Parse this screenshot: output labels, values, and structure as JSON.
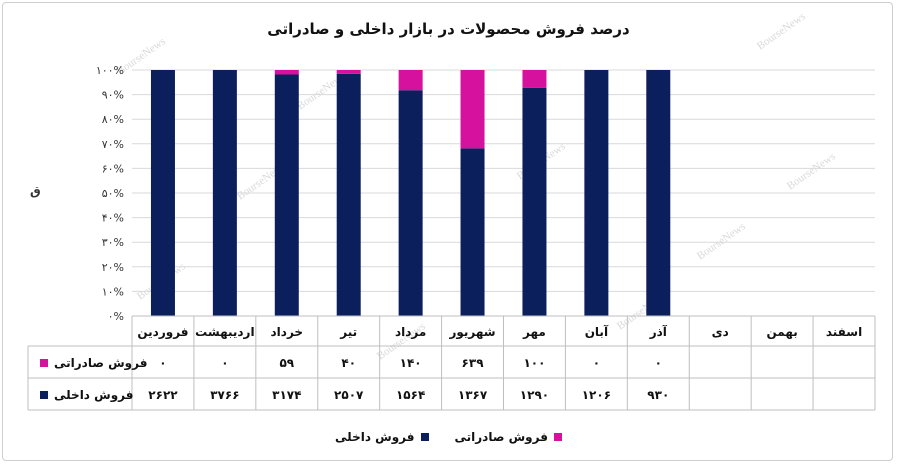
{
  "title": "درصد فروش محصولات در بازار داخلی و صادراتی",
  "chart_data": {
    "type": "bar",
    "stacked": true,
    "normalized": true,
    "title": "درصد فروش محصولات در بازار داخلی و صادراتی",
    "ylabel": "",
    "ylim": [
      0,
      100
    ],
    "yticks": [
      "۰%",
      "۱۰%",
      "۲۰%",
      "۳۰%",
      "۴۰%",
      "۵۰%",
      "۶۰%",
      "۷۰%",
      "۸۰%",
      "۹۰%",
      "۱۰۰%"
    ],
    "categories": [
      "فروردین",
      "اردیبهشت",
      "خرداد",
      "تیر",
      "مرداد",
      "شهریور",
      "مهر",
      "آبان",
      "آذر",
      "دی",
      "بهمن",
      "اسفند"
    ],
    "series": [
      {
        "name": "فروش داخلی",
        "color": "#0b1f5c",
        "values": [
          2622,
          3766,
          3174,
          2507,
          1564,
          1367,
          1290,
          1206,
          930,
          null,
          null,
          null
        ],
        "labels": [
          "۲۶۲۲",
          "۳۷۶۶",
          "۳۱۷۴",
          "۲۵۰۷",
          "۱۵۶۴",
          "۱۳۶۷",
          "۱۲۹۰",
          "۱۲۰۶",
          "۹۳۰",
          "",
          "",
          ""
        ]
      },
      {
        "name": "فروش صادراتی",
        "color": "#d6119e",
        "values": [
          0,
          0,
          59,
          40,
          140,
          639,
          100,
          0,
          0,
          null,
          null,
          null
        ],
        "labels": [
          "۰",
          "۰",
          "۵۹",
          "۴۰",
          "۱۴۰",
          "۶۳۹",
          "۱۰۰",
          "۰",
          "۰",
          "",
          "",
          ""
        ]
      }
    ],
    "grid": true,
    "legend": "bottom",
    "data_table": true
  },
  "watermark": "BourseNews",
  "axis_glyph": "ق"
}
